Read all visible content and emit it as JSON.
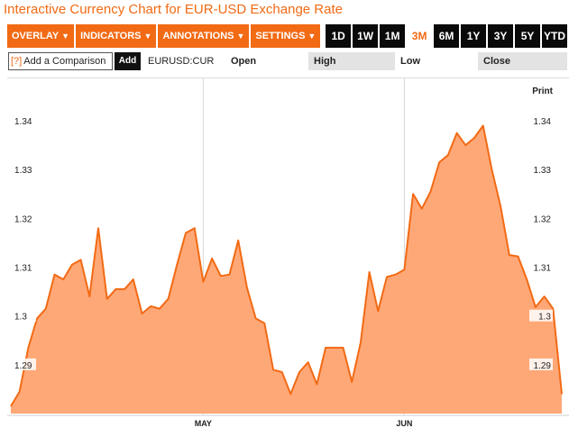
{
  "page_title": "Interactive Currency Chart for EUR-USD Exchange Rate",
  "toolbar": {
    "menus": [
      {
        "label": "OVERLAY",
        "arrow": "▼"
      },
      {
        "label": "INDICATORS",
        "arrow": "▼"
      },
      {
        "label": "ANNOTATIONS",
        "arrow": "▼"
      },
      {
        "label": "SETTINGS",
        "arrow": "▼"
      }
    ],
    "ranges": [
      "1D",
      "1W",
      "1M",
      "3M",
      "6M",
      "1Y",
      "3Y",
      "5Y",
      "YTD"
    ],
    "active_range": "3M"
  },
  "infobar": {
    "compare_icon": "[?]",
    "compare_placeholder": "Add a Comparison",
    "add_label": "Add",
    "ticker": "EURUSD:CUR",
    "open_label": "Open",
    "high_label": "High",
    "low_label": "Low",
    "close_label": "Close"
  },
  "print_label": "Print",
  "colors": {
    "accent": "#f26a14",
    "line": "#f26a14",
    "fill": "#ffa877"
  },
  "chart_data": {
    "type": "area",
    "x": [
      "Apr 1",
      "Apr 2",
      "Apr 3",
      "Apr 4",
      "Apr 5",
      "Apr 8",
      "Apr 9",
      "Apr 10",
      "Apr 11",
      "Apr 12",
      "Apr 15",
      "Apr 16",
      "Apr 17",
      "Apr 18",
      "Apr 19",
      "Apr 22",
      "Apr 23",
      "Apr 24",
      "Apr 25",
      "Apr 26",
      "Apr 29",
      "Apr 30",
      "May 1",
      "May 2",
      "May 3",
      "May 6",
      "May 7",
      "May 8",
      "May 9",
      "May 10",
      "May 13",
      "May 14",
      "May 15",
      "May 16",
      "May 17",
      "May 20",
      "May 21",
      "May 22",
      "May 23",
      "May 24",
      "May 27",
      "May 28",
      "May 29",
      "May 30",
      "May 31",
      "Jun 3",
      "Jun 4",
      "Jun 5",
      "Jun 6",
      "Jun 7",
      "Jun 10",
      "Jun 11",
      "Jun 12",
      "Jun 13",
      "Jun 14",
      "Jun 17",
      "Jun 18",
      "Jun 19",
      "Jun 20",
      "Jun 21",
      "Jun 24",
      "Jun 25",
      "Jun 26",
      "Jun 27"
    ],
    "y": [
      1.2815,
      1.2845,
      1.2935,
      1.2995,
      1.3015,
      1.3085,
      1.3075,
      1.3105,
      1.3115,
      1.304,
      1.318,
      1.3035,
      1.3055,
      1.3055,
      1.3075,
      1.3005,
      1.302,
      1.3015,
      1.3035,
      1.3105,
      1.317,
      1.318,
      1.307,
      1.3118,
      1.3082,
      1.3085,
      1.3155,
      1.3058,
      1.2995,
      1.2985,
      1.289,
      1.2885,
      1.284,
      1.2885,
      1.2905,
      1.286,
      1.2935,
      1.2935,
      1.2935,
      1.2865,
      1.2945,
      1.309,
      1.301,
      1.308,
      1.3085,
      1.3095,
      1.325,
      1.322,
      1.3255,
      1.3315,
      1.333,
      1.3375,
      1.335,
      1.3365,
      1.339,
      1.33,
      1.3225,
      1.3125,
      1.3122,
      1.3075,
      1.3018,
      1.304,
      1.3015,
      1.284
    ],
    "y_axis": {
      "min": 1.28,
      "max": 1.345,
      "ticks": [
        1.29,
        1.3,
        1.31,
        1.32,
        1.33,
        1.34
      ]
    },
    "y_tick_labels": [
      "1.29",
      "1.3",
      "1.31",
      "1.32",
      "1.33",
      "1.34"
    ],
    "x_tick_labels": [
      {
        "label": "MAY",
        "at": "May 1"
      },
      {
        "label": "JUN",
        "at": "Jun 3"
      }
    ],
    "grid": "vertical lines at month starts"
  }
}
